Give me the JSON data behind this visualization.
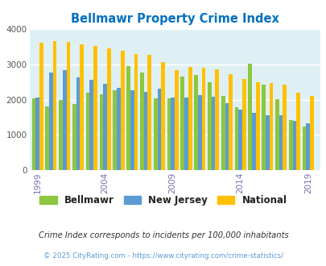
{
  "title": "Bellmawr Property Crime Index",
  "years": [
    1999,
    2000,
    2001,
    2002,
    2003,
    2004,
    2005,
    2006,
    2007,
    2008,
    2009,
    2010,
    2011,
    2012,
    2013,
    2014,
    2015,
    2016,
    2017,
    2018,
    2019
  ],
  "bellmawr": [
    2050,
    1820,
    2000,
    1880,
    2200,
    2150,
    2280,
    2960,
    2780,
    2050,
    2050,
    2650,
    2700,
    2500,
    2100,
    1780,
    3020,
    2440,
    2020,
    1420,
    1230
  ],
  "new_jersey": [
    2060,
    2780,
    2840,
    2640,
    2560,
    2460,
    2330,
    2280,
    2220,
    2320,
    2070,
    2070,
    2140,
    2080,
    1900,
    1730,
    1620,
    1550,
    1560,
    1410,
    1330
  ],
  "national": [
    3620,
    3660,
    3650,
    3580,
    3520,
    3460,
    3380,
    3300,
    3270,
    3060,
    2830,
    2940,
    2900,
    2870,
    2720,
    2580,
    2500,
    2470,
    2440,
    2200,
    2100
  ],
  "bellmawr_color": "#8dc63f",
  "nj_color": "#5b9bd5",
  "national_color": "#ffc000",
  "bg_color": "#dff0f5",
  "title_color": "#0070c0",
  "xtick_color": "#7070aa",
  "ytick_color": "#555555",
  "footer_text": "Crime Index corresponds to incidents per 100,000 inhabitants",
  "copyright_text": "© 2025 CityRating.com - https://www.cityrating.com/crime-statistics/",
  "ylim": [
    0,
    4000
  ],
  "yticks": [
    0,
    1000,
    2000,
    3000,
    4000
  ],
  "xtick_labels": [
    "1999",
    "2004",
    "2009",
    "2014",
    "2019"
  ],
  "xtick_positions": [
    1999,
    2004,
    2009,
    2014,
    2019
  ],
  "bar_width": 0.28,
  "xlim_left": 1998.4,
  "xlim_right": 2019.9
}
